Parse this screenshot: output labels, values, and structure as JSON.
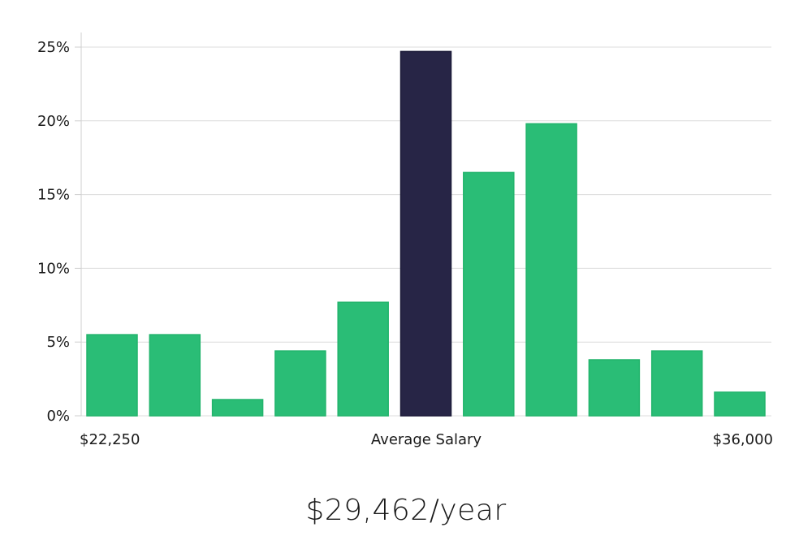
{
  "chart_data": {
    "type": "bar",
    "categories": [
      "1",
      "2",
      "3",
      "4",
      "5",
      "6",
      "7",
      "8",
      "9",
      "10",
      "11"
    ],
    "values": [
      5.5,
      5.5,
      1.1,
      4.4,
      7.7,
      24.7,
      16.5,
      19.8,
      3.8,
      4.4,
      1.6
    ],
    "highlight_index": 5,
    "ylim": [
      0,
      26
    ],
    "yticks": [
      0,
      5,
      10,
      15,
      20,
      25
    ],
    "ytick_labels": [
      "0%",
      "5%",
      "10%",
      "15%",
      "20%",
      "25%"
    ],
    "grid": true,
    "x_labels": {
      "left": "$22,250",
      "center": "Average Salary",
      "right": "$36,000"
    },
    "colors": {
      "bar": "#2abd76",
      "bar_border": "#22b46c",
      "highlight": "#272546",
      "highlight_border": "#1b1a38"
    }
  },
  "summary": {
    "average_salary": "$29,462/year"
  }
}
